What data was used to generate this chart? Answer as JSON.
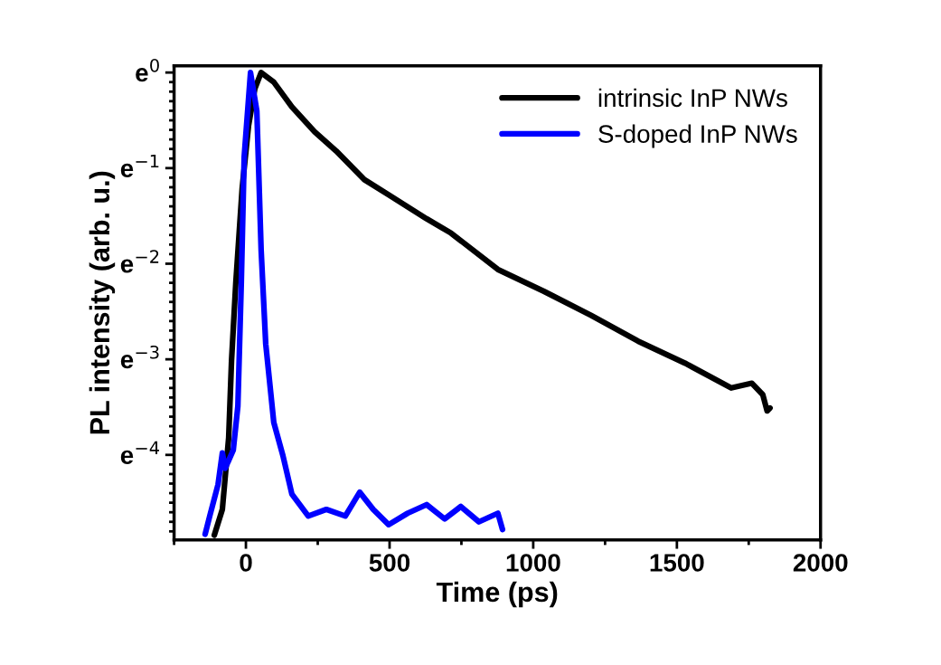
{
  "chart_data": {
    "type": "line",
    "xlabel": "Time (ps)",
    "ylabel": "PL intensity (arb. u.)",
    "legend": "top right",
    "grid": false,
    "marker": "none",
    "line_style": "solid",
    "xlim": [
      -250,
      2000
    ],
    "xticks": [
      0,
      500,
      1000,
      1500,
      2000
    ],
    "ylim": [
      -4.89,
      0.07
    ],
    "yticks": [
      {
        "value": 0,
        "label": "e$^{0}$"
      },
      {
        "value": -1,
        "label": "e$^{−1}$"
      },
      {
        "value": -2,
        "label": "e$^{−2}$"
      },
      {
        "value": -3,
        "label": "e$^{−3}$"
      },
      {
        "value": -4,
        "label": "e$^{−4}$"
      }
    ],
    "series": [
      {
        "name": "intrinsic InP NWs",
        "color": "#000000",
        "x": [
          -110,
          -82,
          -60,
          -50,
          -35,
          -13,
          9,
          31,
          53,
          97,
          160,
          239,
          314,
          412,
          497,
          629,
          714,
          877,
          1038,
          1201,
          1365,
          1528,
          1689,
          1761,
          1799,
          1814,
          1824
        ],
        "values": [
          -4.84,
          -4.57,
          -3.82,
          -3.01,
          -2.19,
          -1.21,
          -0.56,
          -0.17,
          0,
          -0.1,
          -0.36,
          -0.62,
          -0.82,
          -1.12,
          -1.28,
          -1.53,
          -1.68,
          -2.06,
          -2.29,
          -2.54,
          -2.81,
          -3.04,
          -3.3,
          -3.25,
          -3.37,
          -3.54,
          -3.51
        ]
      },
      {
        "name": "S-doped InP NWs",
        "color": "#0000ff",
        "x": [
          -142,
          -126,
          -97,
          -82,
          -72,
          -44,
          -28,
          -16,
          -6,
          16,
          38,
          53,
          69,
          97,
          129,
          160,
          217,
          280,
          346,
          396,
          443,
          497,
          563,
          629,
          692,
          748,
          811,
          877,
          893
        ],
        "values": [
          -4.83,
          -4.64,
          -4.31,
          -3.98,
          -4.14,
          -3.95,
          -3.49,
          -2.19,
          -0.88,
          0,
          -0.4,
          -1.86,
          -2.84,
          -3.66,
          -4.01,
          -4.41,
          -4.64,
          -4.57,
          -4.64,
          -4.39,
          -4.57,
          -4.73,
          -4.61,
          -4.52,
          -4.67,
          -4.54,
          -4.7,
          -4.61,
          -4.78
        ]
      }
    ]
  }
}
